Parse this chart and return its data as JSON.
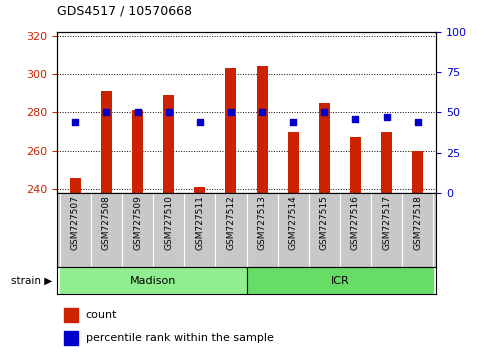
{
  "title": "GDS4517 / 10570668",
  "samples": [
    "GSM727507",
    "GSM727508",
    "GSM727509",
    "GSM727510",
    "GSM727511",
    "GSM727512",
    "GSM727513",
    "GSM727514",
    "GSM727515",
    "GSM727516",
    "GSM727517",
    "GSM727518"
  ],
  "counts": [
    246,
    291,
    281,
    289,
    241,
    303,
    304,
    270,
    285,
    267,
    270,
    260
  ],
  "percentiles": [
    44,
    50,
    50,
    50,
    44,
    50,
    50,
    44,
    50,
    46,
    47,
    44
  ],
  "strain_groups": [
    {
      "label": "Madison",
      "start": 0,
      "end": 5,
      "color": "#90EE90"
    },
    {
      "label": "ICR",
      "start": 6,
      "end": 11,
      "color": "#66DD66"
    }
  ],
  "bar_color": "#CC2200",
  "dot_color": "#0000CC",
  "ylim_left": [
    238,
    322
  ],
  "ylim_right": [
    0,
    100
  ],
  "yticks_left": [
    240,
    260,
    280,
    300,
    320
  ],
  "yticks_right": [
    0,
    25,
    50,
    75,
    100
  ],
  "left_tick_color": "#CC2200",
  "right_tick_color": "#0000CC",
  "tick_area_bg": "#C8C8C8",
  "bar_width": 0.35,
  "legend_items": [
    {
      "label": "count",
      "color": "#CC2200"
    },
    {
      "label": "percentile rank within the sample",
      "color": "#0000CC"
    }
  ]
}
